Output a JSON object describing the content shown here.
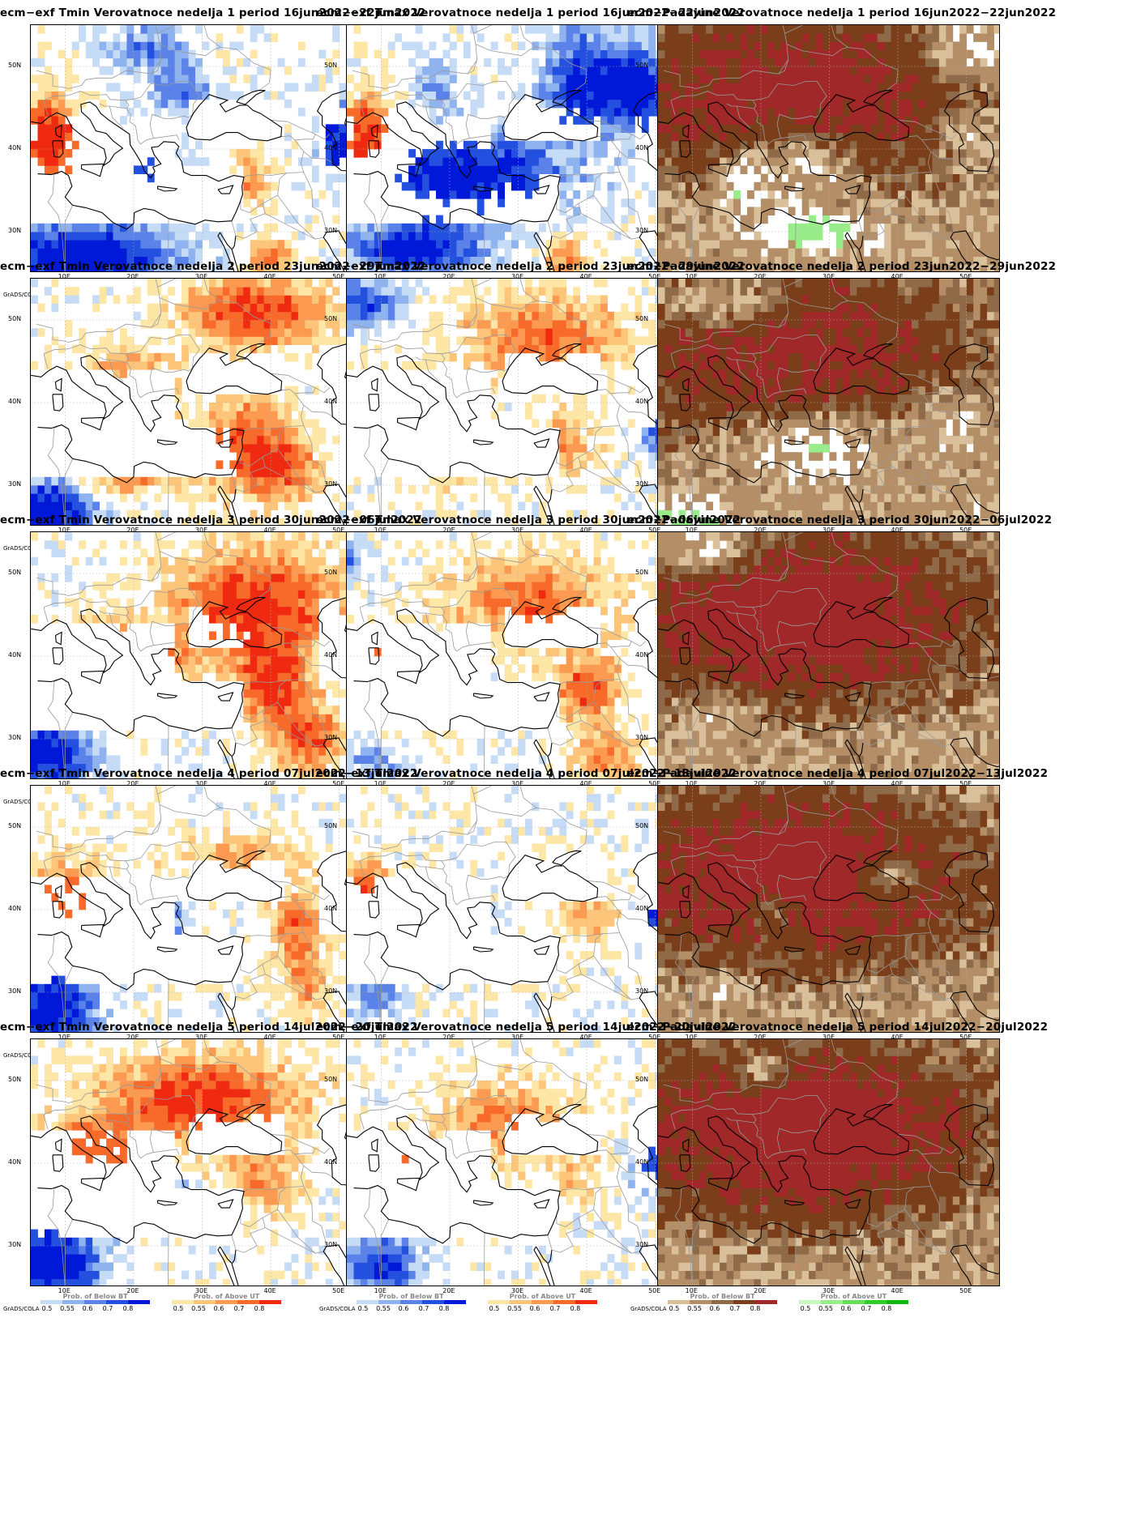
{
  "common": {
    "grads_label": "GrADS/COLA",
    "lat_labels": [
      "50N",
      "40N",
      "30N"
    ],
    "lon_labels": [
      "10E",
      "20E",
      "30E",
      "40E",
      "50E"
    ],
    "tick_labels": [
      "0.5",
      "0.55",
      "0.6",
      "0.7",
      "0.8"
    ]
  },
  "colorbars": {
    "below_bt": {
      "title": "Prob. of Below BT",
      "colors": [
        "#c6dbf5",
        "#8fb3ee",
        "#5a82e8",
        "#2450e0",
        "#0018d8"
      ]
    },
    "above_ut_temp": {
      "title": "Prob. of Above UT",
      "colors": [
        "#fee7a6",
        "#fdc57a",
        "#fb9a50",
        "#f76a2a",
        "#f02a10"
      ]
    },
    "below_bt_precip": {
      "title": "Prob. of Below BT",
      "colors": [
        "#d9c09a",
        "#b48e66",
        "#8e6a48",
        "#7a3f1a",
        "#a02828"
      ]
    },
    "above_ut_precip": {
      "title": "Prob. of Above UT",
      "colors": [
        "#c8f7c0",
        "#98ec8a",
        "#66de58",
        "#30cc28",
        "#10b810"
      ]
    }
  },
  "panels": [
    {
      "title": "ecm−exf Tmin Verovatnoce nedelja 1 period 16jun2022−22jun2022",
      "var": "tmin",
      "week": 1
    },
    {
      "title": "ecm−exf Tmax Verovatnoce nedelja 1 period 16jun2022−22jun2022",
      "var": "tmax",
      "week": 1
    },
    {
      "title": "ecm−Padavine Verovatnoce nedelja 1 period 16jun2022−22jun2022",
      "var": "precip",
      "week": 1
    },
    {
      "title": "ecm−exf Tmin Verovatnoce nedelja 2 period 23jun2022−29jun2022",
      "var": "tmin",
      "week": 2
    },
    {
      "title": "ecm−exf Tmax Verovatnoce nedelja 2 period 23jun2022−29jun2022",
      "var": "tmax",
      "week": 2
    },
    {
      "title": "ecm−Padavine Verovatnoce nedelja 2 period 23jun2022−29jun2022",
      "var": "precip",
      "week": 2
    },
    {
      "title": "ecm−exf Tmin Verovatnoce nedelja 3 period 30jun2022−06jul2022",
      "var": "tmin",
      "week": 3
    },
    {
      "title": "ecm−exf Tmax Verovatnoce nedelja 3 period 30jun2022−06jul2022",
      "var": "tmax",
      "week": 3
    },
    {
      "title": "ecm−Padavine Verovatnoce nedelja 3 period 30jun2022−06jul2022",
      "var": "precip",
      "week": 3
    },
    {
      "title": "ecm−exf Tmin Verovatnoce nedelja 4 period 07jul2022−13jul2022",
      "var": "tmin",
      "week": 4
    },
    {
      "title": "ecm−exf Tmax Verovatnoce nedelja 4 period 07jul2022−13jul2022",
      "var": "tmax",
      "week": 4
    },
    {
      "title": "ecm−Padavine Verovatnoce nedelja 4 period 07jul2022−13jul2022",
      "var": "precip",
      "week": 4
    },
    {
      "title": "ecm−exf Tmin Verovatnoce nedelja 5 period 14jul2022−20jul2022",
      "var": "tmin",
      "week": 5
    },
    {
      "title": "ecm−exf Tmax Verovatnoce nedelja 5 period 14jul2022−20jul2022",
      "var": "tmax",
      "week": 5
    },
    {
      "title": "ecm−Padavine Verovatnoce nedelja 5 period 14jul2022−20jul2022",
      "var": "precip",
      "week": 5
    }
  ]
}
